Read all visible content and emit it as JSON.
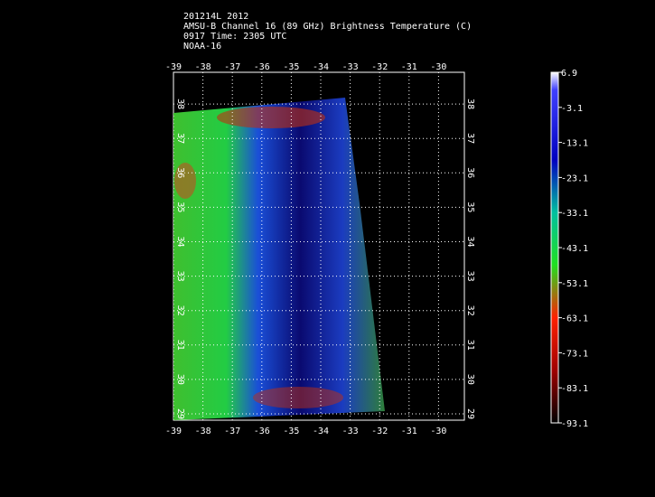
{
  "title_lines": [
    "201214L 2012",
    "AMSU-B Channel 16 (89 GHz) Brightness Temperature (C)",
    "0917 Time: 2305 UTC",
    "NOAA-16"
  ],
  "map": {
    "lon_ticks": [
      -39,
      -38,
      -37,
      -36,
      -35,
      -34,
      -33,
      -32,
      -31,
      -30
    ],
    "lat_ticks": [
      29,
      30,
      31,
      32,
      33,
      34,
      35,
      36,
      37,
      38
    ]
  },
  "colorbar": {
    "ticks": [
      6.9,
      -3.1,
      -13.1,
      -23.1,
      -33.1,
      -43.1,
      -53.1,
      -63.1,
      -73.1,
      -83.1,
      -93.1
    ]
  }
}
